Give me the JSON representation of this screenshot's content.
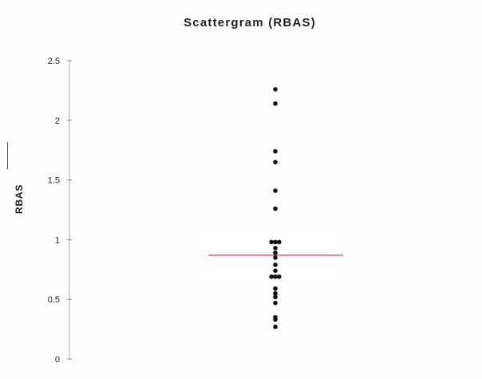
{
  "chart_data": {
    "type": "scatter",
    "title": "Scattergram (RBAS)",
    "ylabel": "RBAS",
    "xlabel": "",
    "ylim": [
      0,
      2.5
    ],
    "yticks": [
      {
        "value": 0,
        "label": "0"
      },
      {
        "value": 0.5,
        "label": "0.5"
      },
      {
        "value": 1,
        "label": "1"
      },
      {
        "value": 1.5,
        "label": "1.5"
      },
      {
        "value": 2,
        "label": "2"
      },
      {
        "value": 2.5,
        "label": "2.5"
      }
    ],
    "grid": false,
    "legend": "none",
    "points": [
      {
        "x": 0,
        "y": 2.26
      },
      {
        "x": 0,
        "y": 2.14
      },
      {
        "x": 0,
        "y": 1.74
      },
      {
        "x": 0,
        "y": 1.65
      },
      {
        "x": 0,
        "y": 1.41
      },
      {
        "x": 0,
        "y": 1.26
      },
      {
        "x": -0.04,
        "y": 0.98
      },
      {
        "x": 0.0,
        "y": 0.98
      },
      {
        "x": 0.04,
        "y": 0.98
      },
      {
        "x": 0,
        "y": 0.93
      },
      {
        "x": 0,
        "y": 0.89
      },
      {
        "x": 0,
        "y": 0.85
      },
      {
        "x": 0,
        "y": 0.79
      },
      {
        "x": 0,
        "y": 0.74
      },
      {
        "x": -0.04,
        "y": 0.69
      },
      {
        "x": 0.0,
        "y": 0.69
      },
      {
        "x": 0.04,
        "y": 0.69
      },
      {
        "x": 0,
        "y": 0.59
      },
      {
        "x": 0,
        "y": 0.55
      },
      {
        "x": 0,
        "y": 0.52
      },
      {
        "x": 0,
        "y": 0.47
      },
      {
        "x": 0,
        "y": 0.35
      },
      {
        "x": 0,
        "y": 0.33
      },
      {
        "x": 0,
        "y": 0.27
      }
    ],
    "reference_line": {
      "y": 0.87,
      "color": "#e0304a"
    },
    "point_color": "#111111",
    "axis_color": "#aaaaaa"
  }
}
